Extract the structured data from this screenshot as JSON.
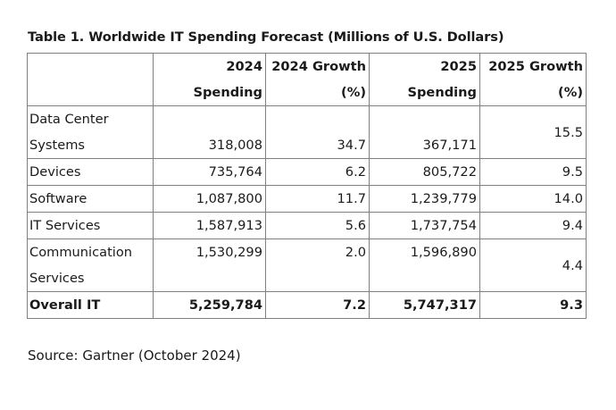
{
  "title": "Table 1. Worldwide IT Spending Forecast (Millions of U.S. Dollars)",
  "columns": [
    {
      "line1": "",
      "line2": ""
    },
    {
      "line1": "2024",
      "line2": "Spending"
    },
    {
      "line1": "2024 Growth",
      "line2": "(%)"
    },
    {
      "line1": "2025",
      "line2": "Spending"
    },
    {
      "line1": "2025 Growth",
      "line2": "(%)"
    }
  ],
  "rows": [
    {
      "label_line1": "Data Center",
      "label_line2": "Systems",
      "spending_2024": "318,008",
      "growth_2024": "34.7",
      "spending_2025": "367,171",
      "growth_2025": "15.5"
    },
    {
      "label_line1": "Devices",
      "label_line2": "",
      "spending_2024": "735,764",
      "growth_2024": "6.2",
      "spending_2025": "805,722",
      "growth_2025": "9.5"
    },
    {
      "label_line1": "Software",
      "label_line2": "",
      "spending_2024": "1,087,800",
      "growth_2024": "11.7",
      "spending_2025": "1,239,779",
      "growth_2025": "14.0"
    },
    {
      "label_line1": "IT Services",
      "label_line2": "",
      "spending_2024": "1,587,913",
      "growth_2024": "5.6",
      "spending_2025": "1,737,754",
      "growth_2025": "9.4"
    },
    {
      "label_line1": "Communication",
      "label_line2": "Services",
      "spending_2024": "1,530,299",
      "growth_2024": "2.0",
      "spending_2025": "1,596,890",
      "growth_2025": "4.4"
    }
  ],
  "total": {
    "label": "Overall IT",
    "spending_2024": "5,259,784",
    "growth_2024": "7.2",
    "spending_2025": "5,747,317",
    "growth_2025": "9.3"
  },
  "source": "Source: Gartner (October 2024)"
}
